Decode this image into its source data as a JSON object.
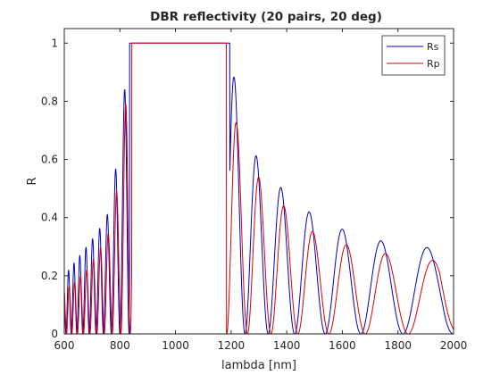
{
  "chart_data": {
    "type": "line",
    "title": "DBR reflectivity (20 pairs, 20 deg)",
    "xlabel": "lambda [nm]",
    "ylabel": "R",
    "xlim": [
      600,
      2000
    ],
    "ylim": [
      0,
      1.05
    ],
    "xticks": [
      "600",
      "800",
      "1000",
      "1200",
      "1400",
      "1600",
      "1800",
      "2000"
    ],
    "yticks": [
      "0",
      "0.2",
      "0.4",
      "0.6",
      "0.8",
      "1"
    ],
    "grid": false,
    "legend_position": "top-right",
    "series": [
      {
        "name": "Rs",
        "color": "#0000c0",
        "stopband": [
          835,
          1195
        ],
        "x": [
          600,
          640,
          680,
          720,
          760,
          790,
          810,
          825,
          835,
          1195,
          1210,
          1230,
          1260,
          1300,
          1360,
          1440,
          1520,
          1600,
          1690,
          1790,
          1880,
          1960,
          2000
        ],
        "envelope": [
          0.2,
          0.25,
          0.3,
          0.35,
          0.42,
          0.6,
          0.75,
          0.95,
          1.0,
          1.0,
          0.89,
          0.78,
          0.65,
          0.6,
          0.52,
          0.45,
          0.39,
          0.36,
          0.33,
          0.31,
          0.3,
          0.29,
          0.2
        ]
      },
      {
        "name": "Rp",
        "color": "#dd0000",
        "stopband": [
          843,
          1183
        ],
        "x": [
          600,
          640,
          680,
          720,
          760,
          790,
          810,
          825,
          843,
          1183,
          1200,
          1220,
          1250,
          1290,
          1350,
          1430,
          1510,
          1590,
          1670,
          1780,
          1870,
          1950,
          2000
        ],
        "envelope": [
          0.15,
          0.18,
          0.22,
          0.28,
          0.35,
          0.5,
          0.65,
          0.85,
          1.0,
          1.0,
          0.86,
          0.72,
          0.6,
          0.55,
          0.48,
          0.4,
          0.34,
          0.31,
          0.3,
          0.27,
          0.26,
          0.25,
          0.13
        ]
      }
    ]
  }
}
